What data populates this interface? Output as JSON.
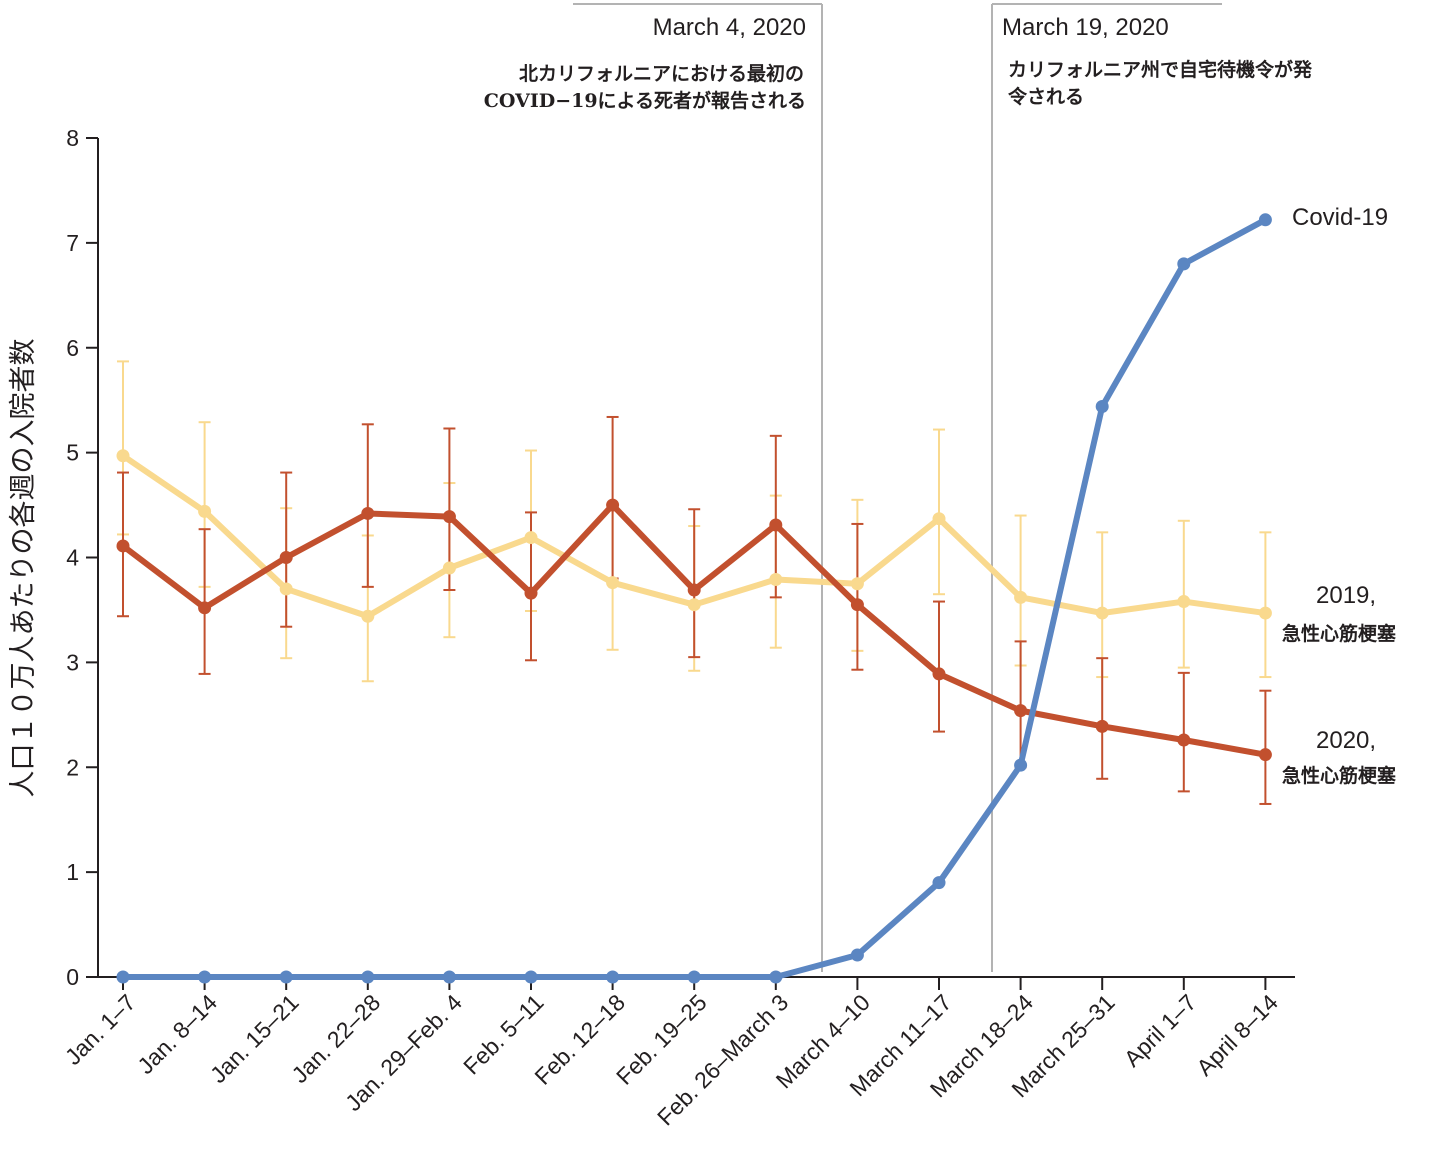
{
  "chart_data": {
    "type": "line",
    "title": "",
    "xlabel": "",
    "ylabel": "人口１０万人あたりの各週の入院者数",
    "ylim": [
      0,
      8
    ],
    "yticks": [
      "0",
      "1",
      "2",
      "3",
      "4",
      "5",
      "6",
      "7",
      "8"
    ],
    "grid": false,
    "categories": [
      "Jan. 1–7",
      "Jan. 8–14",
      "Jan. 15–21",
      "Jan. 22–28",
      "Jan. 29–Feb. 4",
      "Feb. 5–11",
      "Feb. 12–18",
      "Feb. 19–25",
      "Feb. 26–March 3",
      "March 4–10",
      "March 11–17",
      "March 18–24",
      "March 25–31",
      "April 1–7",
      "April 8–14"
    ],
    "series": [
      {
        "name": "2019, 急性心筋梗塞",
        "label_line1": "2019,",
        "label_line2": "急性心筋梗塞",
        "color": "#f9d98e",
        "values": [
          4.97,
          4.44,
          3.7,
          3.44,
          3.9,
          4.19,
          3.76,
          3.55,
          3.79,
          3.75,
          4.37,
          3.62,
          3.47,
          3.58,
          3.47
        ],
        "err_low": [
          4.22,
          3.72,
          3.04,
          2.82,
          3.24,
          3.49,
          3.12,
          2.92,
          3.14,
          3.11,
          3.65,
          2.97,
          2.86,
          2.95,
          2.86
        ],
        "err_high": [
          5.87,
          5.29,
          4.47,
          4.21,
          4.71,
          5.02,
          4.51,
          4.3,
          4.59,
          4.55,
          5.22,
          4.4,
          4.24,
          4.35,
          4.24
        ]
      },
      {
        "name": "2020, 急性心筋梗塞",
        "label_line1": "2020,",
        "label_line2": "急性心筋梗塞",
        "color": "#c2502e",
        "values": [
          4.11,
          3.52,
          4.0,
          4.42,
          4.39,
          3.66,
          4.5,
          3.69,
          4.31,
          3.55,
          2.89,
          2.54,
          2.39,
          2.26,
          2.12
        ],
        "err_low": [
          3.44,
          2.89,
          3.34,
          3.72,
          3.69,
          3.02,
          3.8,
          3.05,
          3.62,
          2.93,
          2.34,
          2.0,
          1.89,
          1.77,
          1.65
        ],
        "err_high": [
          4.81,
          4.27,
          4.81,
          5.27,
          5.23,
          4.43,
          5.34,
          4.46,
          5.16,
          4.32,
          3.58,
          3.2,
          3.04,
          2.9,
          2.73
        ]
      },
      {
        "name": "Covid-19",
        "label_line1": "Covid-19",
        "color": "#5b86c2",
        "values": [
          0,
          0,
          0,
          0,
          0,
          0,
          0,
          0,
          0,
          0.21,
          0.9,
          2.02,
          5.44,
          6.8,
          7.22
        ]
      }
    ],
    "annotations": [
      {
        "date": "March 4, 2020",
        "text_line1": "北カリフォルニアにおける最初の",
        "text_line2": "COVID−19による死者が報告される",
        "between": [
          "Feb. 26–March 3",
          "March 4–10"
        ]
      },
      {
        "date": "March 19, 2020",
        "text_line1": "カリフォルニア州で自宅待機令が発",
        "text_line2": "令される",
        "between": [
          "March 11–17",
          "March 18–24"
        ]
      }
    ]
  }
}
